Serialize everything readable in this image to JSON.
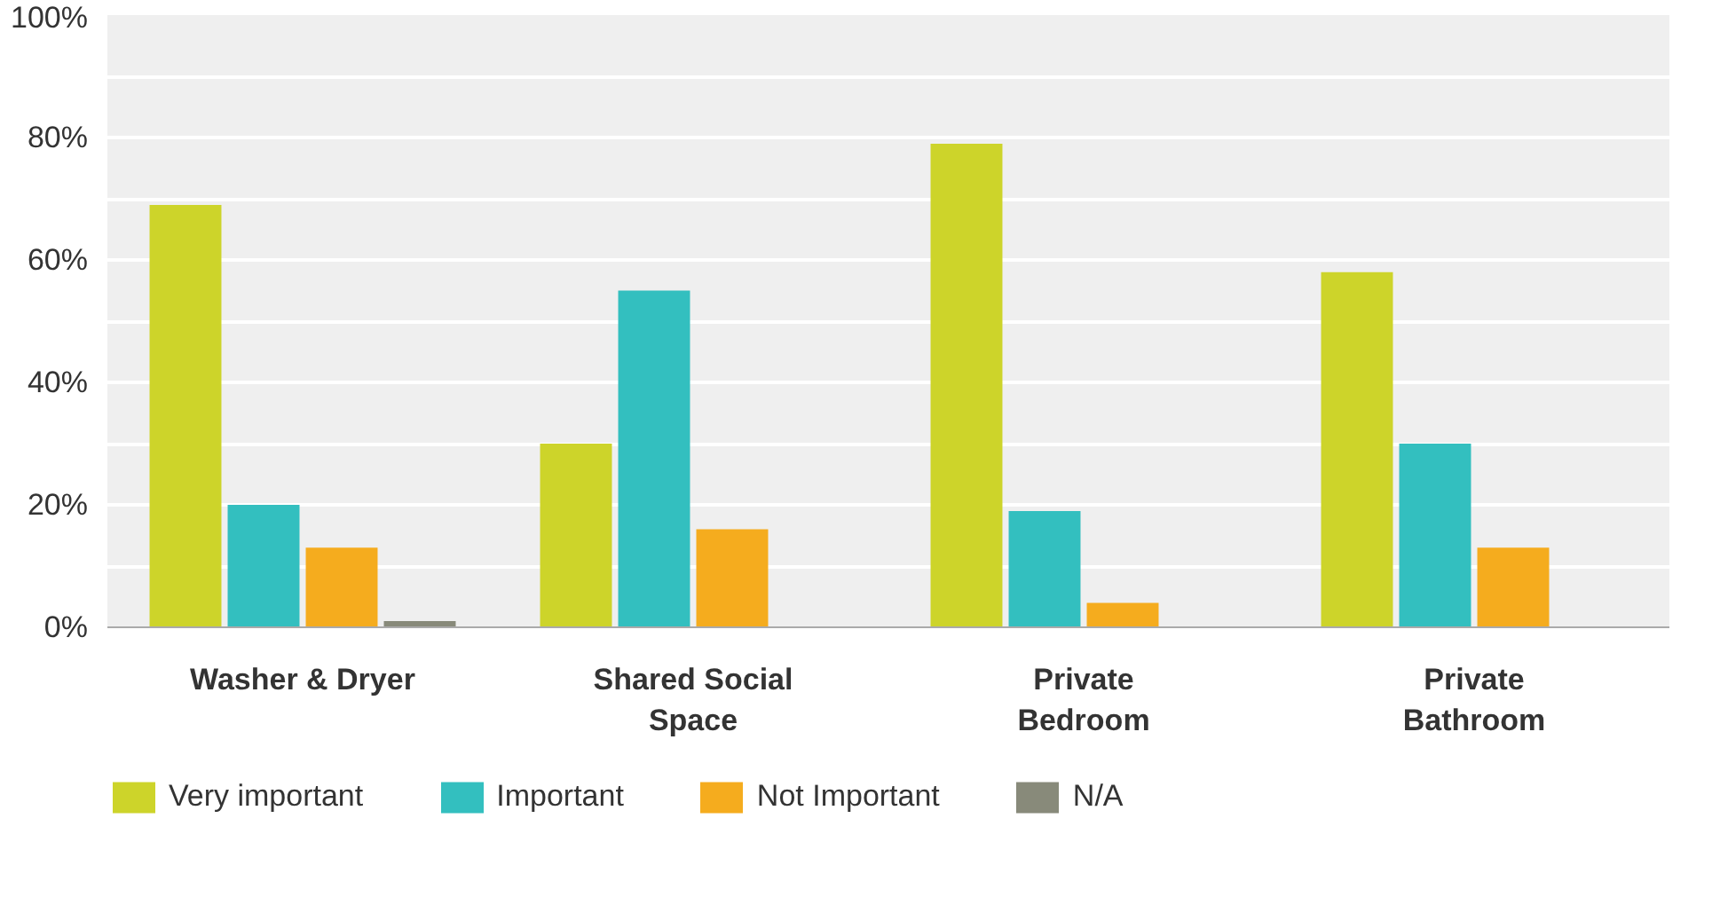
{
  "chart_data": {
    "type": "bar",
    "categories": [
      "Washer & Dryer",
      "Shared Social Space",
      "Private Bedroom",
      "Private Bathroom"
    ],
    "series": [
      {
        "name": "Very important",
        "color": "#cdd42a",
        "values": [
          69,
          30,
          79,
          58
        ]
      },
      {
        "name": "Important",
        "color": "#33bfbf",
        "values": [
          20,
          55,
          19,
          30
        ]
      },
      {
        "name": "Not Important",
        "color": "#f5ac1e",
        "values": [
          13,
          16,
          4,
          13
        ]
      },
      {
        "name": "N/A",
        "color": "#888a7a",
        "values": [
          1,
          0,
          null,
          null
        ]
      }
    ],
    "ylim": [
      0,
      100
    ],
    "yticks": [
      {
        "value": 0,
        "label": "0%"
      },
      {
        "value": 10,
        "label": null
      },
      {
        "value": 20,
        "label": "20%"
      },
      {
        "value": 30,
        "label": null
      },
      {
        "value": 40,
        "label": "40%"
      },
      {
        "value": 50,
        "label": null
      },
      {
        "value": 60,
        "label": "60%"
      },
      {
        "value": 70,
        "label": null
      },
      {
        "value": 80,
        "label": "80%"
      },
      {
        "value": 90,
        "label": null
      },
      {
        "value": 100,
        "label": "100%"
      }
    ],
    "grid": "y",
    "legend": "bottom"
  }
}
